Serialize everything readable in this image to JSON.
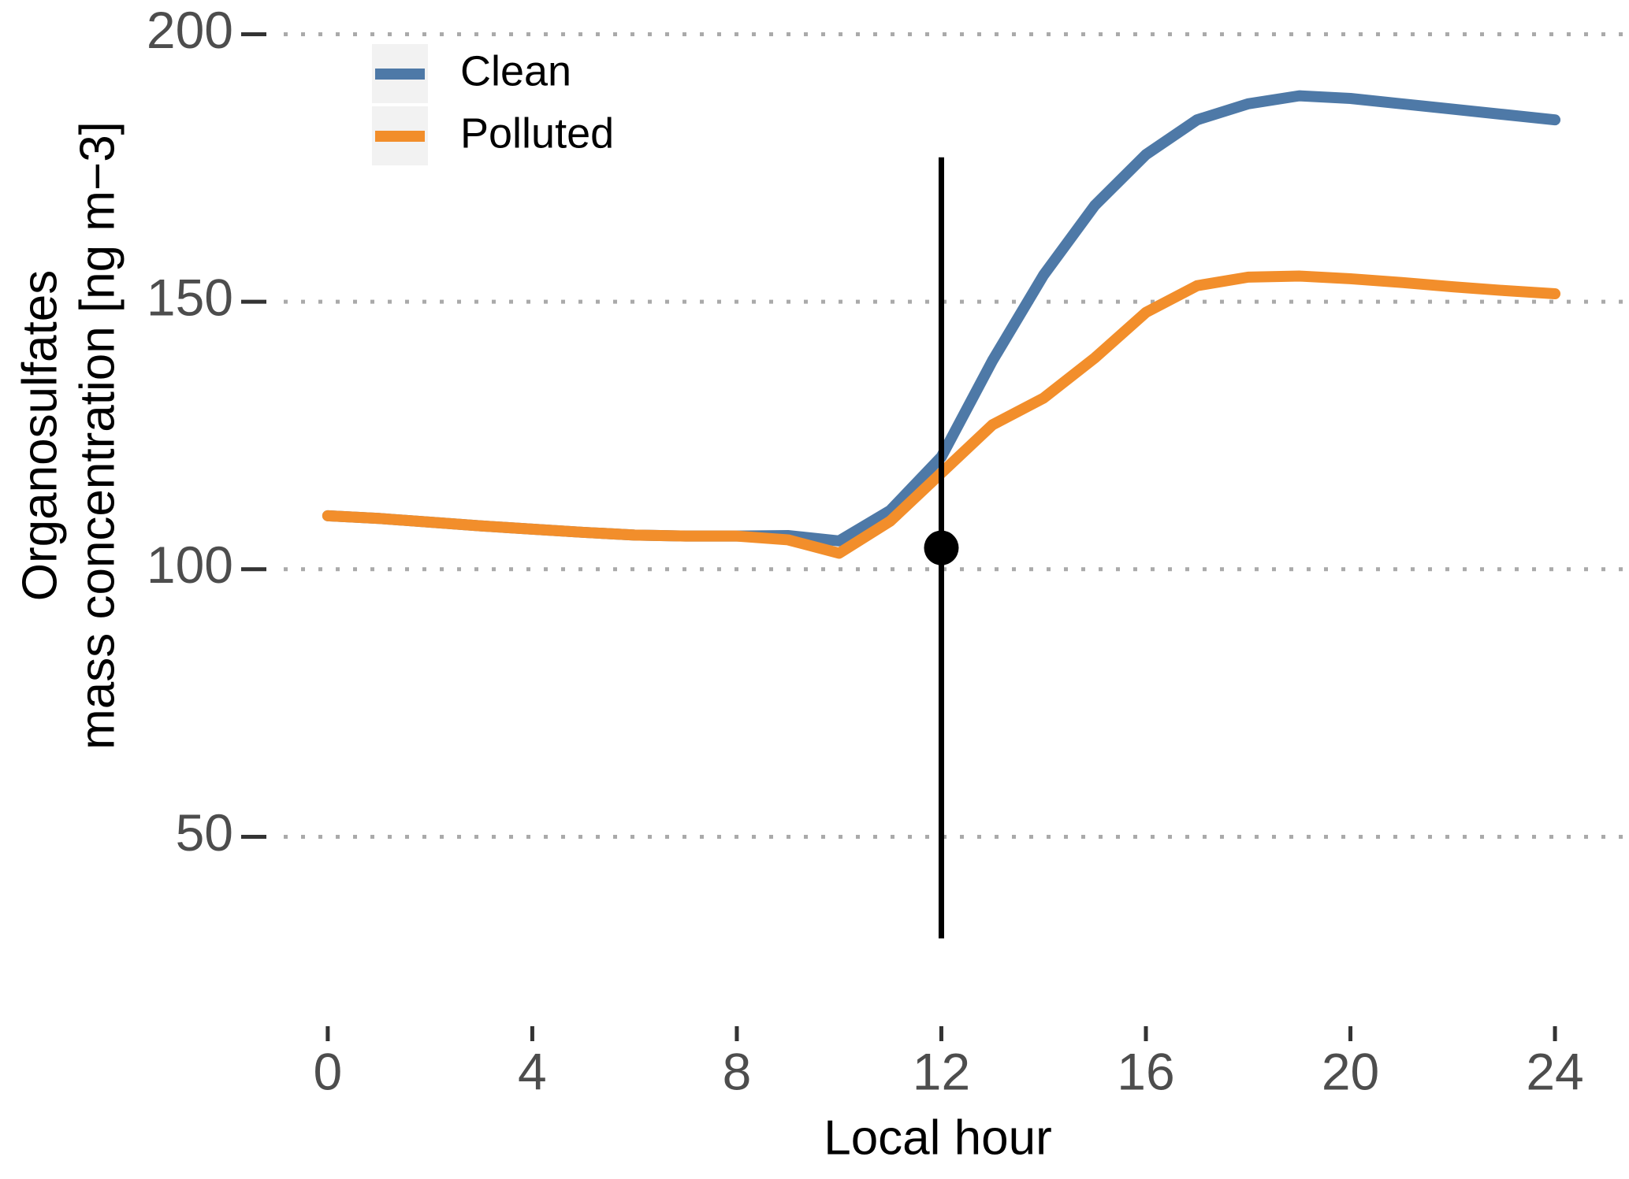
{
  "chart_data": {
    "type": "line",
    "xlabel": "Local hour",
    "ylabel": [
      "Organosulfates",
      "mass concentration [ng m−3]"
    ],
    "x": [
      0,
      1,
      2,
      3,
      4,
      5,
      6,
      7,
      8,
      9,
      10,
      11,
      12,
      13,
      14,
      15,
      16,
      17,
      18,
      19,
      20,
      21,
      22,
      23,
      24
    ],
    "series": [
      {
        "name": "Clean",
        "color": "#4e79a7",
        "values": [
          110,
          109.5,
          108.8,
          108.1,
          107.5,
          106.9,
          106.4,
          106.2,
          106.2,
          106.3,
          105.3,
          111,
          121,
          139,
          155,
          168,
          177.5,
          184,
          187,
          188.5,
          188,
          187,
          186,
          185,
          184
        ]
      },
      {
        "name": "Polluted",
        "color": "#f28e2b",
        "values": [
          110,
          109.5,
          108.8,
          108.1,
          107.5,
          106.9,
          106.4,
          106.2,
          106.2,
          105.5,
          103,
          109,
          118,
          127,
          132,
          139.5,
          148,
          153,
          154.6,
          154.8,
          154.3,
          153.6,
          152.8,
          152.1,
          151.5
        ]
      }
    ],
    "errorbar": {
      "x": 12,
      "y": 104,
      "ymin": 31,
      "ymax": 177,
      "color": "#000000"
    },
    "xlim": [
      -1,
      24.5
    ],
    "ylim": [
      12,
      202
    ],
    "xticks": [
      0,
      4,
      8,
      12,
      16,
      20,
      24
    ],
    "yticks": [
      50,
      100,
      150,
      200
    ],
    "grid": true,
    "legend": "top-left"
  }
}
